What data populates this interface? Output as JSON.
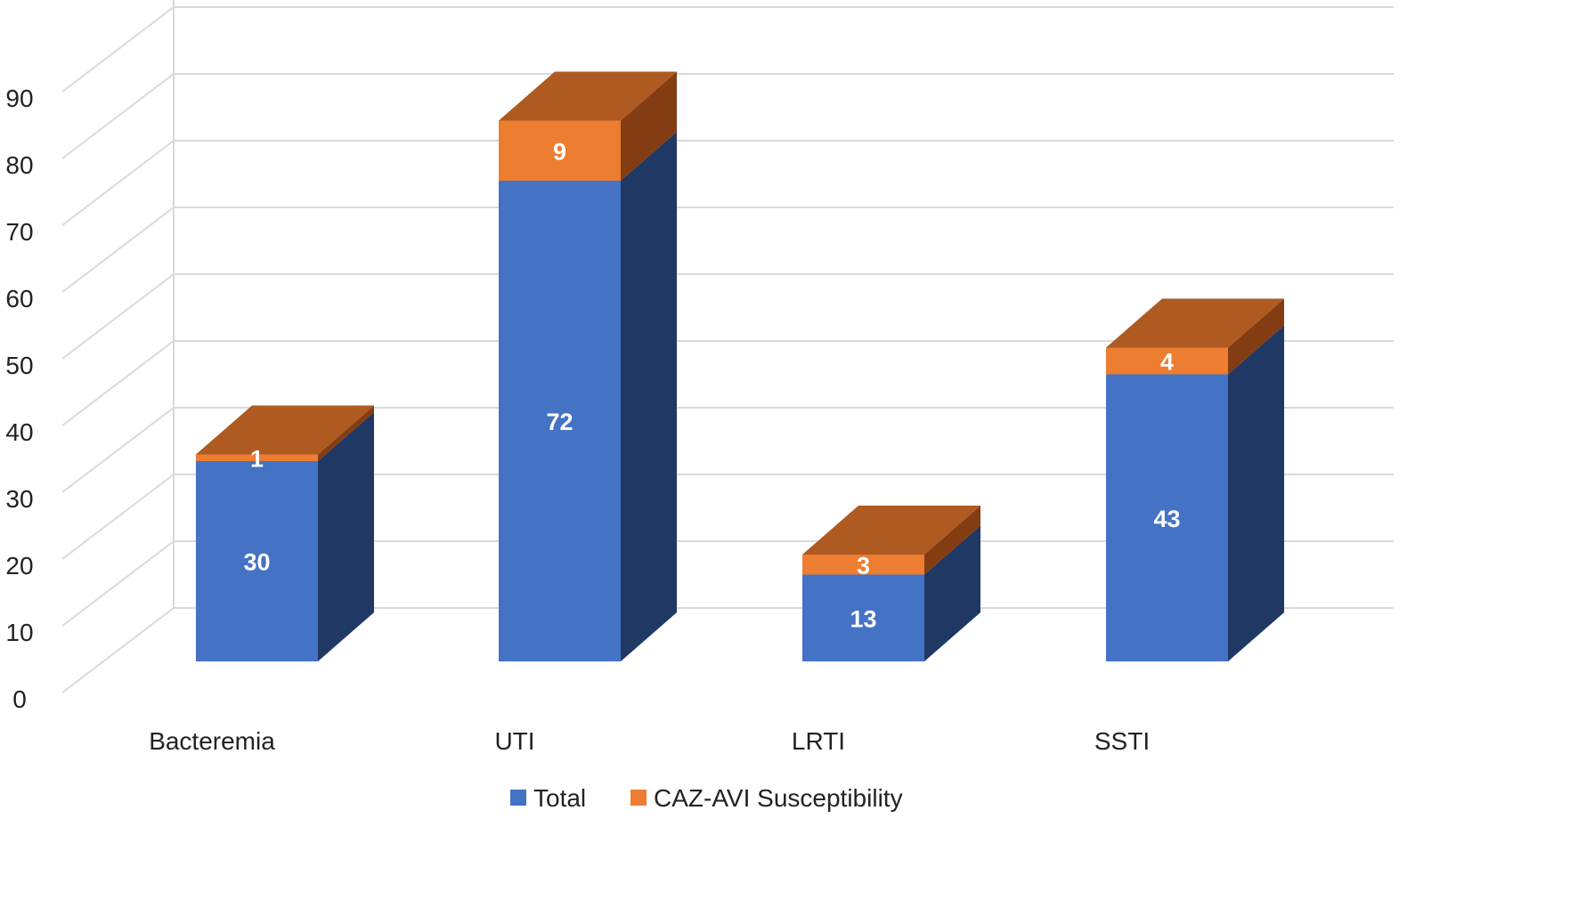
{
  "chart_data": {
    "type": "bar",
    "subtype": "3d-stacked",
    "title": "",
    "xlabel": "",
    "ylabel": "",
    "categories": [
      "Bacteremia",
      "UTI",
      "LRTI",
      "SSTI"
    ],
    "series": [
      {
        "name": "Total",
        "values": [
          30,
          72,
          13,
          43
        ],
        "color": "#4472C4",
        "side_color": "#1F3864"
      },
      {
        "name": "CAZ-AVI Susceptibility",
        "values": [
          1,
          9,
          3,
          4
        ],
        "color": "#ED7D31",
        "top_color": "#AE5A21",
        "side_color": "#843C12"
      }
    ],
    "ylim": [
      0,
      90
    ],
    "yticks": [
      "0",
      "10",
      "20",
      "30",
      "40",
      "50",
      "60",
      "70",
      "80",
      "90"
    ],
    "grid": true,
    "legend": "bottom-center"
  }
}
